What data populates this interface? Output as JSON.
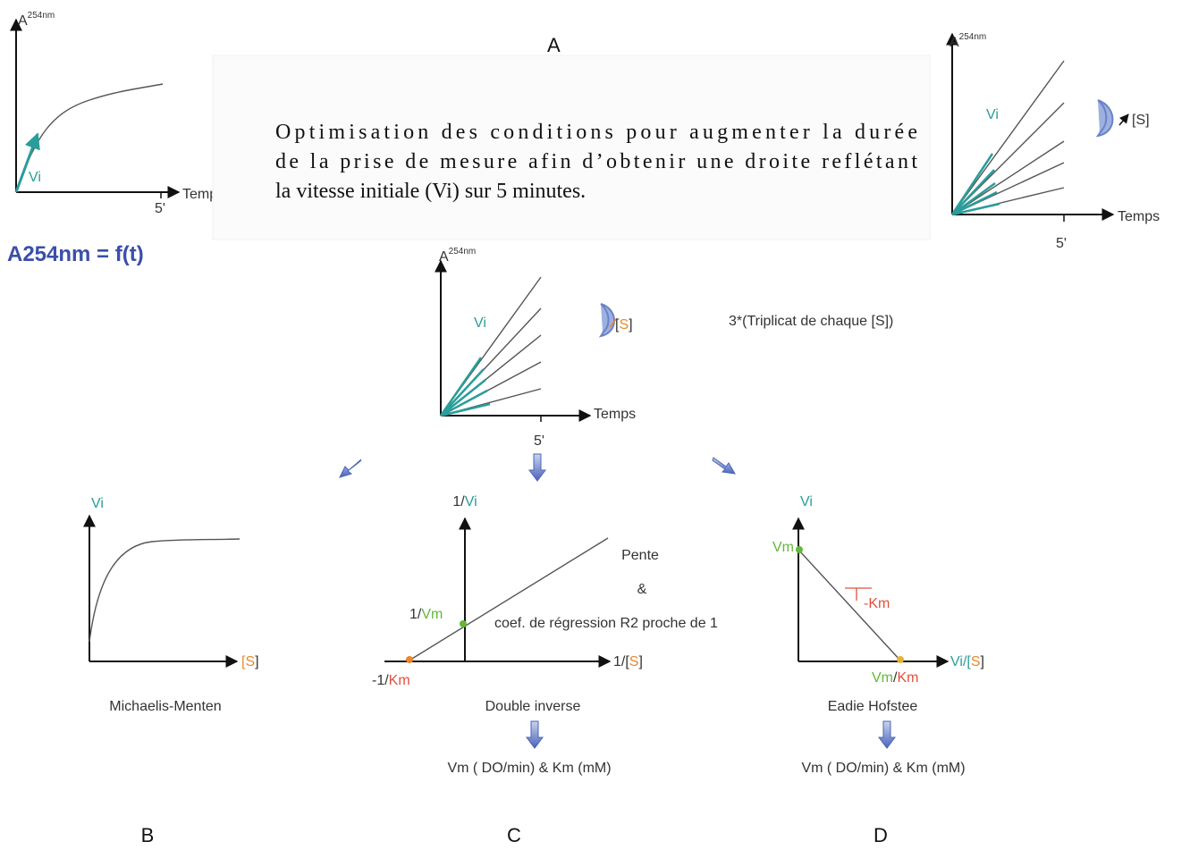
{
  "A": {
    "label": "A",
    "raw_graph": {
      "y_axis": [
        "A",
        "254nm"
      ],
      "curve_label": "Vi",
      "x_axis": "Temps",
      "x_tick": "5'",
      "caption": "A254nm = f(t)"
    },
    "arrow": "⇒",
    "text_lines": [
      "Optimisation des conditions pour augmenter la durée",
      "de la prise de mesure afin d’obtenir une droite reflétant",
      "la vitesse initiale (Vi) sur 5 minutes."
    ],
    "optimized_graph": {
      "y_axis": [
        "A",
        "254nm"
      ],
      "curve_label": "Vi",
      "rotation_label": "[S]",
      "x_axis": "Temps",
      "x_tick": "5'"
    }
  },
  "center_graph": {
    "y_axis": [
      "A",
      "254nm"
    ],
    "curve_label": "Vi",
    "rotation_label": [
      "[",
      "S",
      "]"
    ],
    "x_axis": "Temps",
    "x_tick": "5'",
    "note": "3*(Triplicat de chaque [S])"
  },
  "B": {
    "label": "B",
    "y_axis": "Vi",
    "x_axis": [
      "[",
      "S",
      "]"
    ],
    "name": "Michaelis-Menten"
  },
  "C": {
    "label": "C",
    "y_axis": [
      "1/",
      "Vi"
    ],
    "y_intercept": [
      "1/",
      "Vm"
    ],
    "x_intercept": [
      "-1/",
      "Km"
    ],
    "x_axis": [
      "1/[",
      "S",
      "]"
    ],
    "notes": [
      "Pente",
      "&",
      "coef. de régression R2 proche de 1"
    ],
    "name": "Double inverse",
    "result": "Vm ( DO/min) & Km (mM)"
  },
  "D": {
    "label": "D",
    "y_axis": "Vi",
    "y_intercept": "Vm",
    "slope": "-Km",
    "x_axis": [
      "Vi/[",
      "S",
      "]"
    ],
    "x_intercept": [
      "Vm",
      "/",
      "Km"
    ],
    "name": "Eadie Hofstee",
    "result": "Vm ( DO/min) & Km (mM)"
  }
}
